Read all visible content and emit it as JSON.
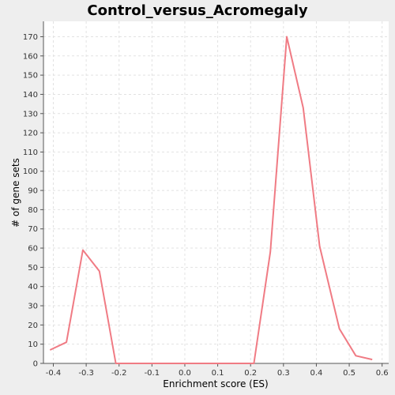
{
  "chart_data": {
    "type": "line",
    "title": "Control_versus_Acromegaly",
    "xlabel": "Enrichment score (ES)",
    "ylabel": "# of gene sets",
    "xlim": [
      -0.43,
      0.62
    ],
    "ylim": [
      0,
      178
    ],
    "xticks": [
      -0.4,
      -0.3,
      -0.2,
      -0.1,
      0.0,
      0.1,
      0.2,
      0.3,
      0.4,
      0.5,
      0.6
    ],
    "xtick_labels": [
      "-0.4",
      "-0.3",
      "-0.2",
      "-0.1",
      "0.0",
      "0.1",
      "0.2",
      "0.3",
      "0.4",
      "0.5",
      "0.6"
    ],
    "yticks": [
      0,
      10,
      20,
      30,
      40,
      50,
      60,
      70,
      80,
      90,
      100,
      110,
      120,
      130,
      140,
      150,
      160,
      170
    ],
    "ytick_labels": [
      "0",
      "10",
      "20",
      "30",
      "40",
      "50",
      "60",
      "70",
      "80",
      "90",
      "100",
      "110",
      "120",
      "130",
      "140",
      "150",
      "160",
      "170"
    ],
    "grid": true,
    "legend": "none",
    "color": "#f07b84",
    "x": [
      -0.41,
      -0.36,
      -0.31,
      -0.26,
      -0.21,
      -0.16,
      -0.11,
      -0.06,
      -0.01,
      0.04,
      0.09,
      0.14,
      0.21,
      0.26,
      0.31,
      0.36,
      0.41,
      0.47,
      0.52,
      0.57
    ],
    "y": [
      7,
      11,
      59,
      48,
      0,
      0,
      0,
      0,
      0,
      0,
      0,
      0,
      0,
      58,
      170,
      133,
      61,
      18,
      4,
      2
    ]
  }
}
